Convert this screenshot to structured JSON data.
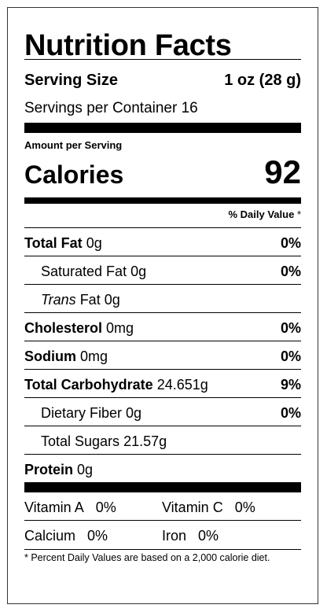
{
  "label": {
    "title": "Nutrition Facts",
    "serving_size_label": "Serving Size",
    "serving_size_value": "1 oz (28 g)",
    "servings_per_container_label": "Servings per Container",
    "servings_per_container_value": "16",
    "amount_per_serving": "Amount per Serving",
    "calories_label": "Calories",
    "calories_value": "92",
    "daily_value_header": "% Daily Value",
    "daily_value_marker": "*",
    "nutrients": {
      "total_fat": {
        "label": "Total Fat",
        "amount": "0g",
        "dv": "0%"
      },
      "saturated_fat": {
        "label": "Saturated Fat",
        "amount": "0g",
        "dv": "0%"
      },
      "trans_fat": {
        "label_italic": "Trans",
        "label": " Fat",
        "amount": "0g"
      },
      "cholesterol": {
        "label": "Cholesterol",
        "amount": "0mg",
        "dv": "0%"
      },
      "sodium": {
        "label": "Sodium",
        "amount": "0mg",
        "dv": "0%"
      },
      "total_carbohydrate": {
        "label": "Total Carbohydrate",
        "amount": "24.651g",
        "dv": "9%"
      },
      "dietary_fiber": {
        "label": "Dietary Fiber",
        "amount": "0g",
        "dv": "0%"
      },
      "total_sugars": {
        "label": "Total Sugars",
        "amount": "21.57g"
      },
      "protein": {
        "label": "Protein",
        "amount": "0g"
      }
    },
    "vitamins": {
      "vitamin_a": {
        "label": "Vitamin A",
        "value": "0%"
      },
      "vitamin_c": {
        "label": "Vitamin C",
        "value": "0%"
      },
      "calcium": {
        "label": "Calcium",
        "value": "0%"
      },
      "iron": {
        "label": "Iron",
        "value": "0%"
      }
    },
    "footnote": "* Percent Daily Values are based on a 2,000 calorie diet."
  }
}
